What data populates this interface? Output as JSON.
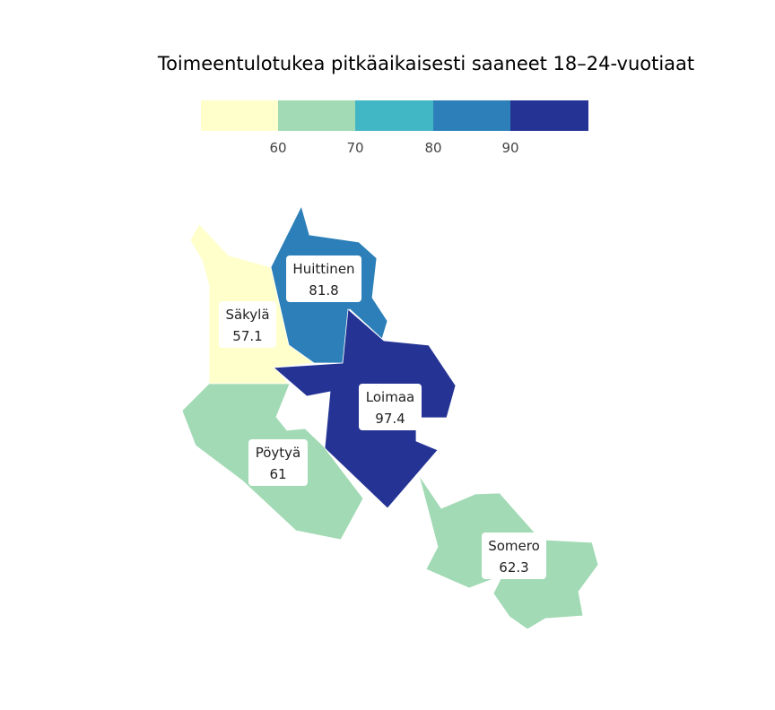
{
  "title": "Toimeentulotukea pitkäaikaisesti saaneet 18–24-vuotiaat",
  "legend": {
    "ticks": [
      "60",
      "70",
      "80",
      "90"
    ],
    "colors": [
      "#ffffcc",
      "#a1dab4",
      "#41b6c4",
      "#2c7fb8",
      "#253494"
    ]
  },
  "regions": [
    {
      "name": "Säkylä",
      "value": "57.1",
      "color": "#ffffcc"
    },
    {
      "name": "Huittinen",
      "value": "81.8",
      "color": "#2c7fb8"
    },
    {
      "name": "Loimaa",
      "value": "97.4",
      "color": "#253494"
    },
    {
      "name": "Pöytyä",
      "value": "61",
      "color": "#a1dab4"
    },
    {
      "name": "Somero",
      "value": "62.3",
      "color": "#a1dab4"
    }
  ]
}
